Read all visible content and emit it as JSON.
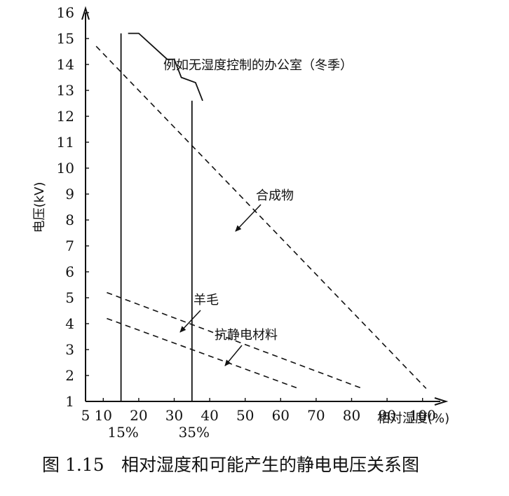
{
  "chart_data": {
    "type": "line",
    "ylabel": "电压(kV)",
    "xlabel": "相对湿度(%)",
    "x_ticks": [
      "5",
      "10",
      "20",
      "30",
      "40",
      "50",
      "60",
      "70",
      "80",
      "90",
      "100"
    ],
    "y_ticks": [
      "1",
      "2",
      "3",
      "4",
      "5",
      "6",
      "7",
      "8",
      "9",
      "10",
      "11",
      "12",
      "13",
      "14",
      "15",
      "16"
    ],
    "xlim": [
      5,
      105
    ],
    "ylim": [
      1,
      16
    ],
    "grid": false,
    "marker_lines": [
      {
        "x": 15,
        "label": "15%"
      },
      {
        "x": 35,
        "label": "35%"
      }
    ],
    "series": [
      {
        "name": "合成物",
        "style": "dashed",
        "points": [
          [
            8,
            14.7
          ],
          [
            101,
            1.5
          ]
        ]
      },
      {
        "name": "羊毛",
        "style": "dashed",
        "points": [
          [
            11,
            5.2
          ],
          [
            83,
            1.5
          ]
        ]
      },
      {
        "name": "抗静电材料",
        "style": "dashed",
        "points": [
          [
            11,
            4.2
          ],
          [
            65,
            1.5
          ]
        ]
      },
      {
        "name": "例如无湿度控制的办公室（冬季）",
        "style": "solid",
        "points": [
          [
            17,
            15.2
          ],
          [
            20,
            15.2
          ],
          [
            28,
            14.2
          ],
          [
            30,
            14.2
          ],
          [
            32,
            13.5
          ],
          [
            36,
            13.3
          ],
          [
            38,
            12.6
          ]
        ]
      }
    ],
    "annotations": [
      "例如无湿度控制的办公室（冬季）",
      "合成物",
      "羊毛",
      "抗静电材料"
    ]
  },
  "caption": {
    "number": "图 1.15",
    "text": "相对湿度和可能产生的静电电压关系图"
  }
}
